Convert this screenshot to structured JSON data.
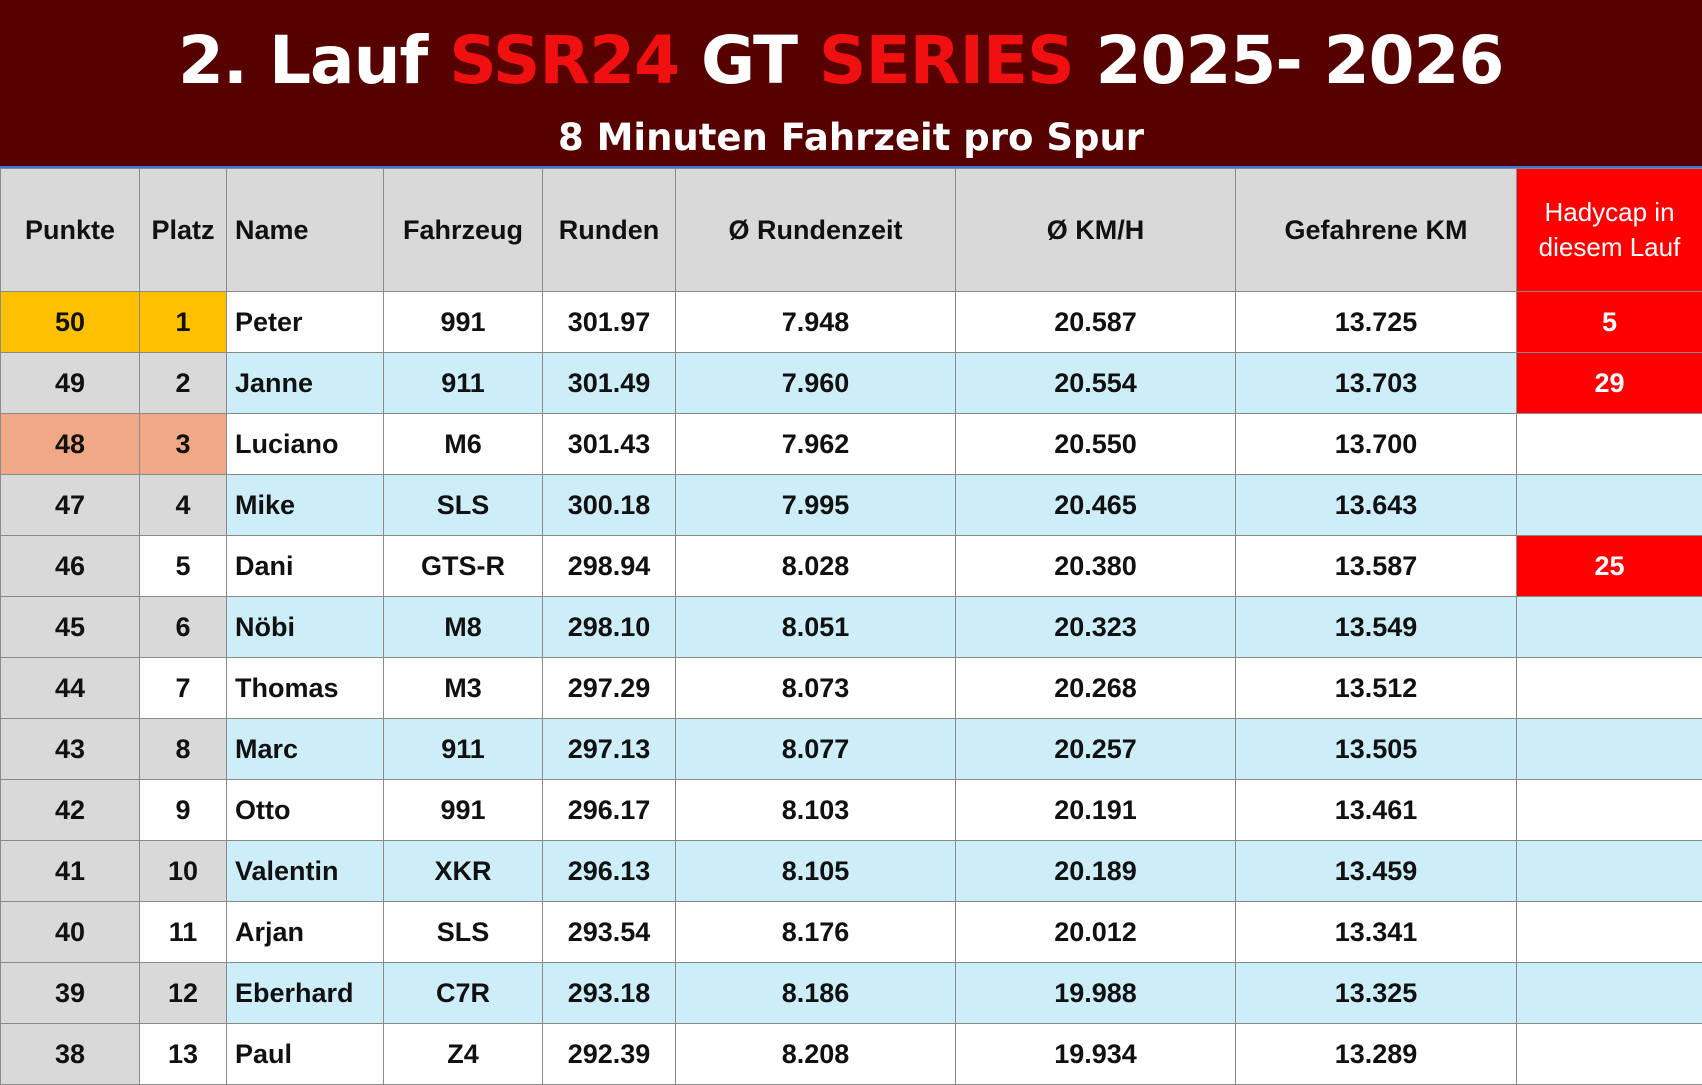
{
  "header": {
    "title_parts": [
      {
        "text": "2. Lauf ",
        "red": false
      },
      {
        "text": "SSR24",
        "red": true
      },
      {
        "text": " GT ",
        "red": false
      },
      {
        "text": "SERIES",
        "red": true
      },
      {
        "text": " 2025- 2026",
        "red": false
      }
    ],
    "subtitle": "8 Minuten Fahrzeit pro Spur"
  },
  "columns": {
    "punkte": "Punkte",
    "platz": "Platz",
    "name": "Name",
    "fahrzeug": "Fahrzeug",
    "runden": "Runden",
    "rundenzeit": "Ø Rundenzeit",
    "kmh": "Ø KM/H",
    "km": "Gefahrene KM",
    "handicap": "Hadycap in diesem Lauf"
  },
  "colors": {
    "banner": "#560000",
    "title_red": "#f01010",
    "handicap_red": "#ff0000",
    "gold": "#ffc000",
    "bronze": "#f0a886",
    "row_alt": "#cdeef9"
  },
  "rows": [
    {
      "punkte": "50",
      "platz": "1",
      "name": "Peter",
      "fahrzeug": "991",
      "runden": "301.97",
      "rundenzeit": "7.948",
      "kmh": "20.587",
      "km": "13.725",
      "handicap": "5"
    },
    {
      "punkte": "49",
      "platz": "2",
      "name": "Janne",
      "fahrzeug": "911",
      "runden": "301.49",
      "rundenzeit": "7.960",
      "kmh": "20.554",
      "km": "13.703",
      "handicap": "29"
    },
    {
      "punkte": "48",
      "platz": "3",
      "name": "Luciano",
      "fahrzeug": "M6",
      "runden": "301.43",
      "rundenzeit": "7.962",
      "kmh": "20.550",
      "km": "13.700",
      "handicap": ""
    },
    {
      "punkte": "47",
      "platz": "4",
      "name": "Mike",
      "fahrzeug": "SLS",
      "runden": "300.18",
      "rundenzeit": "7.995",
      "kmh": "20.465",
      "km": "13.643",
      "handicap": ""
    },
    {
      "punkte": "46",
      "platz": "5",
      "name": "Dani",
      "fahrzeug": "GTS-R",
      "runden": "298.94",
      "rundenzeit": "8.028",
      "kmh": "20.380",
      "km": "13.587",
      "handicap": "25"
    },
    {
      "punkte": "45",
      "platz": "6",
      "name": "Nöbi",
      "fahrzeug": "M8",
      "runden": "298.10",
      "rundenzeit": "8.051",
      "kmh": "20.323",
      "km": "13.549",
      "handicap": ""
    },
    {
      "punkte": "44",
      "platz": "7",
      "name": "Thomas",
      "fahrzeug": "M3",
      "runden": "297.29",
      "rundenzeit": "8.073",
      "kmh": "20.268",
      "km": "13.512",
      "handicap": ""
    },
    {
      "punkte": "43",
      "platz": "8",
      "name": "Marc",
      "fahrzeug": "911",
      "runden": "297.13",
      "rundenzeit": "8.077",
      "kmh": "20.257",
      "km": "13.505",
      "handicap": ""
    },
    {
      "punkte": "42",
      "platz": "9",
      "name": "Otto",
      "fahrzeug": "991",
      "runden": "296.17",
      "rundenzeit": "8.103",
      "kmh": "20.191",
      "km": "13.461",
      "handicap": ""
    },
    {
      "punkte": "41",
      "platz": "10",
      "name": "Valentin",
      "fahrzeug": "XKR",
      "runden": "296.13",
      "rundenzeit": "8.105",
      "kmh": "20.189",
      "km": "13.459",
      "handicap": ""
    },
    {
      "punkte": "40",
      "platz": "11",
      "name": "Arjan",
      "fahrzeug": "SLS",
      "runden": "293.54",
      "rundenzeit": "8.176",
      "kmh": "20.012",
      "km": "13.341",
      "handicap": ""
    },
    {
      "punkte": "39",
      "platz": "12",
      "name": "Eberhard",
      "fahrzeug": "C7R",
      "runden": "293.18",
      "rundenzeit": "8.186",
      "kmh": "19.988",
      "km": "13.325",
      "handicap": ""
    },
    {
      "punkte": "38",
      "platz": "13",
      "name": "Paul",
      "fahrzeug": "Z4",
      "runden": "292.39",
      "rundenzeit": "8.208",
      "kmh": "19.934",
      "km": "13.289",
      "handicap": ""
    }
  ]
}
